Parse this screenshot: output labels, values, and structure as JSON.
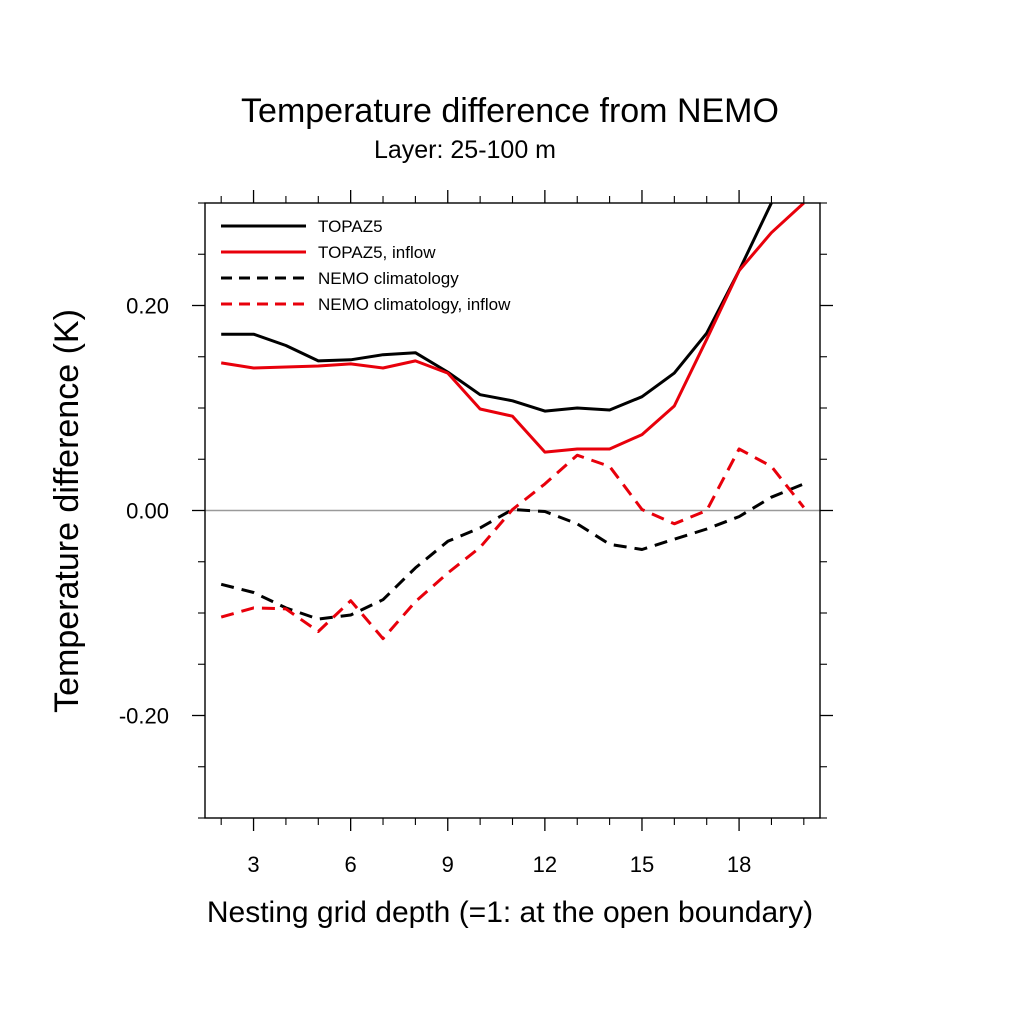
{
  "chart_data": {
    "type": "line",
    "title": "Temperature difference from NEMO",
    "subtitle": "Layer: 25-100 m",
    "xlabel": "Nesting grid depth (=1: at the open boundary)",
    "ylabel": "Temperature difference (K)",
    "xlim": [
      1.5,
      20.5
    ],
    "ylim": [
      -0.3,
      0.3
    ],
    "xticks": [
      3,
      6,
      9,
      12,
      15,
      18
    ],
    "xtick_labels": [
      "3",
      "6",
      "9",
      "12",
      "15",
      "18"
    ],
    "yticks": [
      -0.2,
      0.0,
      0.2
    ],
    "ytick_labels": [
      "-0.20",
      "0.00",
      "0.20"
    ],
    "zero_line": true,
    "grid": false,
    "legend_position": "top-left",
    "x": [
      2,
      3,
      4,
      5,
      6,
      7,
      8,
      9,
      10,
      11,
      12,
      13,
      14,
      15,
      16,
      17,
      18,
      19,
      20
    ],
    "series": [
      {
        "name": "TOPAZ5",
        "color": "#000000",
        "dash": "solid",
        "values": [
          0.172,
          0.172,
          0.161,
          0.146,
          0.147,
          0.152,
          0.154,
          0.135,
          0.113,
          0.107,
          0.097,
          0.1,
          0.098,
          0.111,
          0.134,
          0.173,
          0.234,
          0.3,
          null
        ]
      },
      {
        "name": "TOPAZ5, inflow",
        "color": "#e8000b",
        "dash": "solid",
        "values": [
          0.144,
          0.139,
          0.14,
          0.141,
          0.143,
          0.139,
          0.146,
          0.134,
          0.099,
          0.092,
          0.057,
          0.06,
          0.06,
          0.074,
          0.102,
          0.167,
          0.234,
          0.271,
          0.3
        ]
      },
      {
        "name": "NEMO climatology",
        "color": "#000000",
        "dash": "dashed",
        "values": [
          -0.072,
          -0.08,
          -0.095,
          -0.106,
          -0.102,
          -0.087,
          -0.056,
          -0.03,
          -0.017,
          0.001,
          -0.001,
          -0.013,
          -0.033,
          -0.038,
          -0.028,
          -0.018,
          -0.006,
          0.013,
          0.026
        ]
      },
      {
        "name": "NEMO climatology, inflow",
        "color": "#e8000b",
        "dash": "dashed",
        "values": [
          -0.104,
          -0.095,
          -0.096,
          -0.118,
          -0.088,
          -0.125,
          -0.089,
          -0.061,
          -0.036,
          0.001,
          0.026,
          0.054,
          0.043,
          0.001,
          -0.013,
          0.0,
          0.06,
          0.043,
          0.003
        ]
      }
    ]
  }
}
